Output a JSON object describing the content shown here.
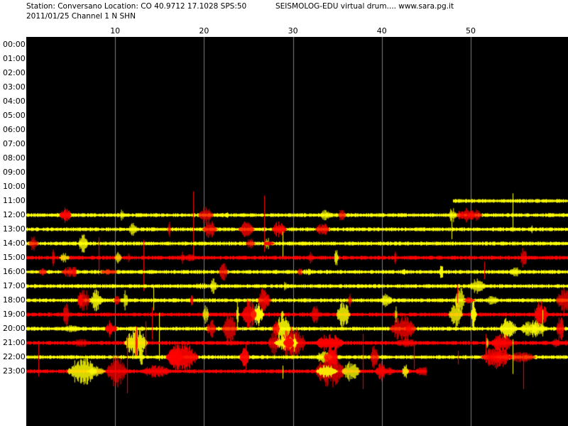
{
  "header": {
    "station_line": "Station: Conversano Location: CO 40.9712 17.1028 SPS:50",
    "app_line": "SEISMOLOG-EDU virtual drum.... www.sara.pg.it",
    "date_line": "2011/01/25  Channel 1 N SHN"
  },
  "minute_axis": {
    "labels": [
      "10",
      "20",
      "30",
      "40",
      "50"
    ],
    "values": [
      10,
      20,
      30,
      40,
      50
    ],
    "range": [
      0,
      60
    ]
  },
  "hour_axis": {
    "labels": [
      "00:00",
      "01:00",
      "02:00",
      "03:00",
      "04:00",
      "05:00",
      "06:00",
      "07:00",
      "08:00",
      "09:00",
      "10:00",
      "11:00",
      "12:00",
      "13:00",
      "14:00",
      "15:00",
      "16:00",
      "17:00",
      "18:00",
      "19:00",
      "20:00",
      "21:00",
      "22:00",
      "23:00"
    ]
  },
  "colors": {
    "background": "#000000",
    "gridline": "#808080",
    "trace_even": "#ffff00",
    "trace_odd": "#ff0000",
    "panel": "#ffffff",
    "text": "#000000"
  },
  "drum": {
    "recording_starts_at": "11:48",
    "active_hours": [
      "11:00",
      "12:00",
      "13:00",
      "14:00",
      "15:00",
      "16:00",
      "17:00",
      "18:00",
      "19:00",
      "20:00",
      "21:00",
      "22:00",
      "23:00"
    ]
  }
}
